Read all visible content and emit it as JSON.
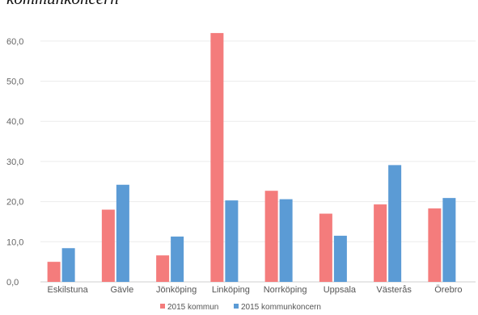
{
  "caption": "kommunkoncern",
  "chart_data": {
    "type": "bar",
    "title": "",
    "xlabel": "",
    "ylabel": "",
    "ylim": [
      0,
      65
    ],
    "yticks": [
      "0,0",
      "10,0",
      "20,0",
      "30,0",
      "40,0",
      "50,0",
      "60,0"
    ],
    "ytick_values": [
      0,
      10,
      20,
      30,
      40,
      50,
      60
    ],
    "grid": true,
    "legend_position": "bottom",
    "categories": [
      "Eskilstuna",
      "Gävle",
      "Jönköping",
      "Linköping",
      "Norrköping",
      "Uppsala",
      "Västerås",
      "Örebro"
    ],
    "series": [
      {
        "name": "2015 kommun",
        "color": "#f47c7c",
        "values": [
          5.0,
          18.0,
          6.6,
          62.0,
          22.7,
          17.0,
          19.3,
          18.3
        ]
      },
      {
        "name": "2015 kommunkoncern",
        "color": "#5b9bd5",
        "values": [
          8.4,
          24.2,
          11.3,
          20.3,
          20.6,
          11.5,
          29.1,
          20.9
        ]
      }
    ]
  }
}
